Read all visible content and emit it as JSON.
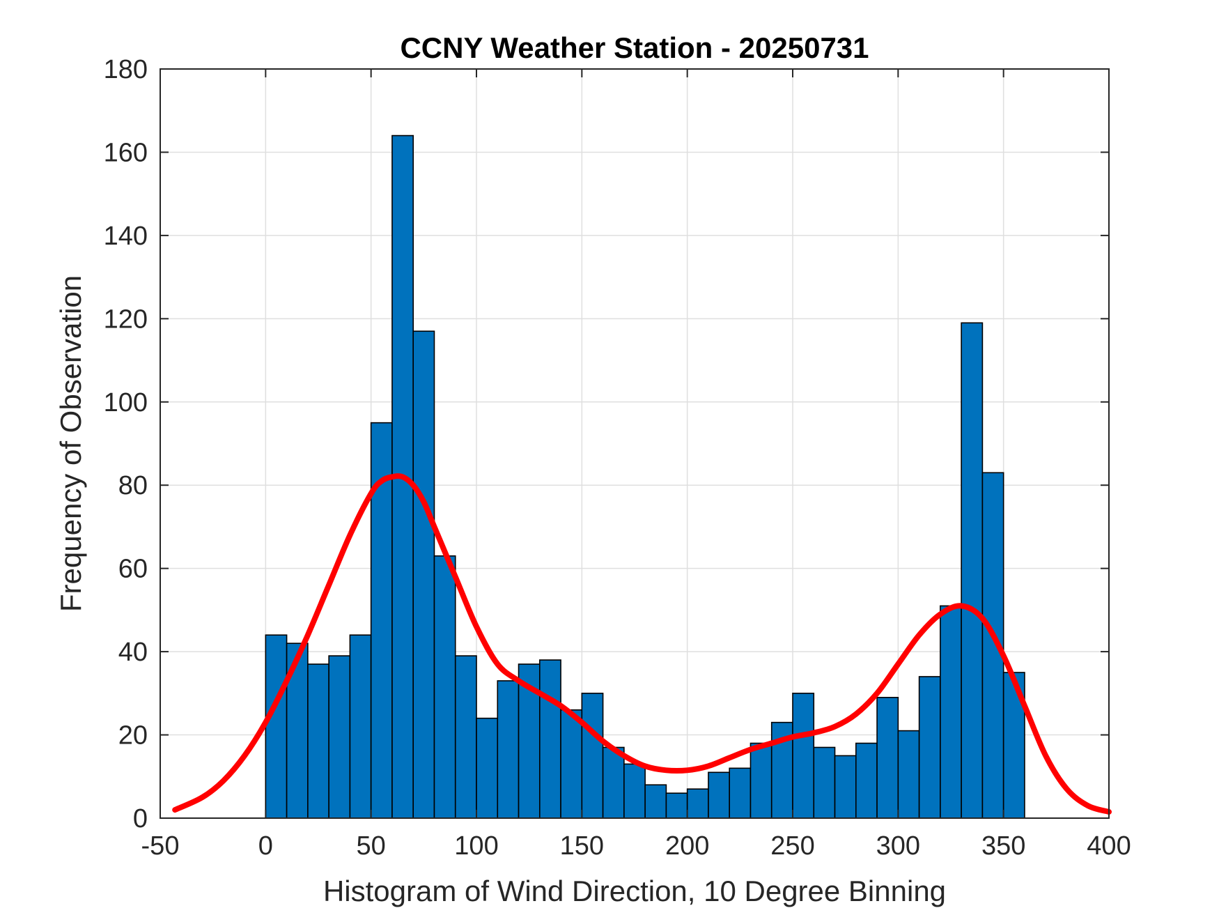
{
  "chart_data": {
    "type": "bar",
    "title": "CCNY Weather Station - 20250731",
    "xlabel": "Histogram of Wind Direction, 10 Degree Binning",
    "ylabel": "Frequency of Observation",
    "xlim": [
      -50,
      400
    ],
    "ylim": [
      0,
      180
    ],
    "grid": true,
    "x_ticks": [
      -50,
      0,
      50,
      100,
      150,
      200,
      250,
      300,
      350,
      400
    ],
    "y_ticks": [
      0,
      20,
      40,
      60,
      80,
      100,
      120,
      140,
      160,
      180
    ],
    "bin_width": 10,
    "bin_starts": [
      0,
      10,
      20,
      30,
      40,
      50,
      60,
      70,
      80,
      90,
      100,
      110,
      120,
      130,
      140,
      150,
      160,
      170,
      180,
      190,
      200,
      210,
      220,
      230,
      240,
      250,
      260,
      270,
      280,
      290,
      300,
      310,
      320,
      330,
      340,
      350
    ],
    "values": [
      44,
      42,
      37,
      39,
      44,
      95,
      164,
      117,
      63,
      39,
      24,
      33,
      37,
      38,
      26,
      30,
      17,
      13,
      8,
      6,
      7,
      11,
      12,
      18,
      23,
      30,
      17,
      15,
      18,
      29,
      21,
      34,
      51,
      119,
      83,
      35
    ],
    "bar_color": "#0072BD",
    "density_curve": {
      "color": "#FF0000",
      "x": [
        -43,
        -30,
        -20,
        -10,
        0,
        10,
        20,
        30,
        40,
        50,
        55,
        60,
        65,
        70,
        75,
        80,
        90,
        100,
        110,
        120,
        130,
        140,
        150,
        160,
        170,
        180,
        190,
        200,
        210,
        220,
        230,
        240,
        250,
        260,
        270,
        280,
        290,
        300,
        310,
        320,
        330,
        340,
        350,
        360,
        370,
        380,
        390,
        400
      ],
      "y": [
        2,
        5,
        9,
        15,
        23,
        33,
        44,
        56,
        68,
        78,
        81,
        82,
        82,
        80,
        76,
        70,
        58,
        46,
        37,
        33,
        30,
        27,
        23,
        18.5,
        15,
        12.5,
        11.5,
        11.5,
        12.5,
        14.5,
        16.5,
        18,
        19.5,
        20.5,
        22,
        25,
        30,
        37,
        44,
        49,
        51,
        48,
        39,
        27,
        15,
        7,
        3,
        1.5
      ]
    }
  }
}
